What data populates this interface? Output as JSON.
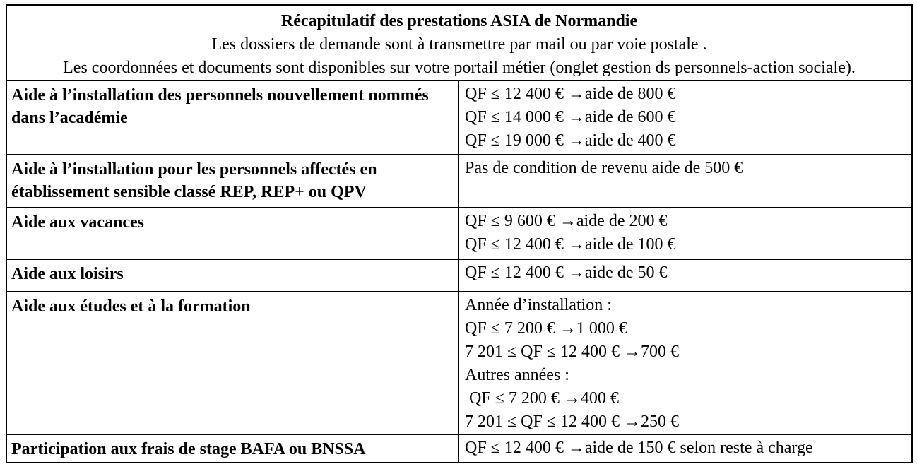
{
  "document": {
    "header": {
      "title": "Récapitulatif des prestations ASIA de Normandie",
      "subtitle1": "Les dossiers de demande sont à transmettre par mail ou par voie postale .",
      "subtitle2": "Les coordonnées et documents sont disponibles sur votre portail métier (onglet gestion ds personnels-action sociale)."
    },
    "rows": [
      {
        "label": "Aide à l’installation des personnels nouvellement nommés dans l’académie",
        "lines": [
          "QF ≤ 12 400 € →aide de 800 €",
          "QF ≤ 14 000 € →aide de 600 €",
          "QF ≤ 19 000 € →aide de 400 €"
        ]
      },
      {
        "label": "Aide à l’installation pour les personnels affectés en établissement sensible classé REP, REP+ ou QPV",
        "lines": [
          "Pas de condition de revenu aide de 500 €"
        ]
      },
      {
        "label": "Aide aux vacances",
        "lines": [
          "QF ≤ 9 600 € →aide de 200 €",
          "QF ≤ 12 400 € →aide de 100 €"
        ]
      },
      {
        "label": "Aide aux loisirs",
        "lines": [
          "QF ≤ 12 400 € →aide de 50 €"
        ]
      },
      {
        "label": "Aide aux études et à la formation",
        "lines": [
          "Année d’installation :",
          "QF ≤ 7 200 € →1 000 €",
          "7 201 ≤ QF ≤ 12 400 € →700 €",
          "Autres années :",
          " QF ≤ 7 200 € →400 €",
          "7 201 ≤ QF ≤ 12 400 € →250 €"
        ]
      },
      {
        "label": "Participation aux frais de stage BAFA ou BNSSA",
        "lines": [
          "QF ≤ 12 400 € →aide de 150 € selon reste à charge"
        ]
      }
    ],
    "colors": {
      "border": "#000000",
      "text": "#000000",
      "background": "#ffffff"
    }
  }
}
